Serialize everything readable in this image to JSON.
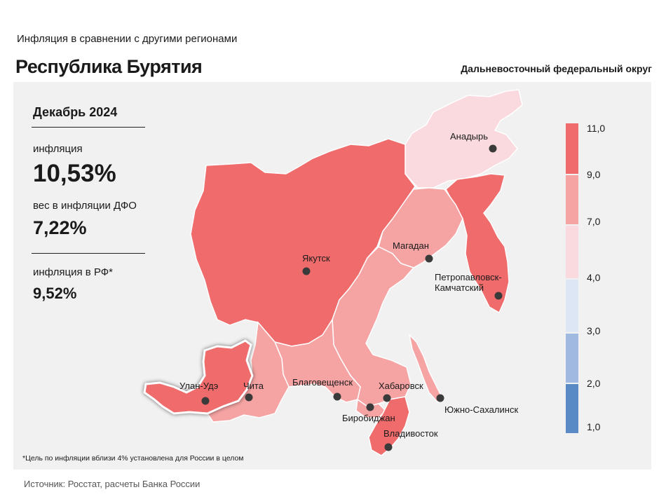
{
  "header": {
    "subtitle": "Инфляция  в сравнении  с другими  регионами",
    "title": "Республика Бурятия",
    "district": "Дальневосточный федеральный округ"
  },
  "stats": {
    "period": "Декабрь 2024",
    "inflation_label": "инфляция",
    "inflation_value": "10,53%",
    "weight_label": "вес в инфляции  ДФО",
    "weight_value": "7,22%",
    "rf_label": "инфляция  в РФ*",
    "rf_value": "9,52%"
  },
  "map": {
    "highlighted_region": "Республика Бурятия",
    "cities": [
      {
        "name": "Анадырь"
      },
      {
        "name": "Якутск"
      },
      {
        "name": "Магадан"
      },
      {
        "name": "Петропавловск-"
      },
      {
        "name": "Камчатский"
      },
      {
        "name": "Улан-Удэ"
      },
      {
        "name": "Чита"
      },
      {
        "name": "Благовещенск"
      },
      {
        "name": "Хабаровск"
      },
      {
        "name": "Биробиджан"
      },
      {
        "name": "Владивосток"
      },
      {
        "name": "Южно-Сахалинск"
      }
    ],
    "legend": {
      "labels": [
        "11,0",
        "9,0",
        "7,0",
        "4,0",
        "3,0",
        "2,0",
        "1,0"
      ],
      "colors": [
        "#f06b6b",
        "#f5a3a3",
        "#fadadf",
        "#dde6f5",
        "#9fb9e0",
        "#5a8ac6"
      ]
    },
    "colors": {
      "band_9_11": "#f06b6b",
      "band_7_9": "#f5a3a3",
      "band_4_7": "#fadadf"
    }
  },
  "footnote": "*Цель по инфляции вблизи 4% установлена для России в целом",
  "source": "Источник: Росстат, расчеты Банка России"
}
